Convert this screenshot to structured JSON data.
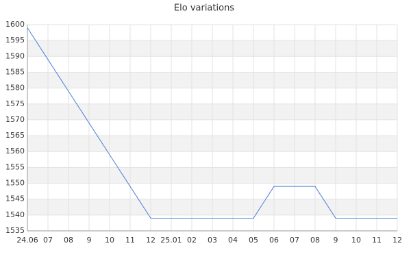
{
  "chart_data": {
    "type": "line",
    "title": "Elo variations",
    "categories": [
      "24.06",
      "07",
      "08",
      "9",
      "10",
      "11",
      "12",
      "25.01",
      "02",
      "03",
      "04",
      "05",
      "06",
      "07",
      "08",
      "9",
      "10",
      "11",
      "12"
    ],
    "series": [
      {
        "name": "Elo",
        "color": "#4a7fd6",
        "values": [
          1599,
          1589,
          1579,
          1569,
          1559,
          1549,
          1539,
          1539,
          1539,
          1539,
          1539,
          1539,
          1549,
          1549,
          1549,
          1539,
          1539,
          1539,
          1539
        ]
      }
    ],
    "ylim": [
      1535,
      1600
    ],
    "yticks": [
      1535,
      1540,
      1545,
      1550,
      1555,
      1560,
      1565,
      1570,
      1575,
      1580,
      1585,
      1590,
      1595,
      1600
    ],
    "grid": true
  }
}
